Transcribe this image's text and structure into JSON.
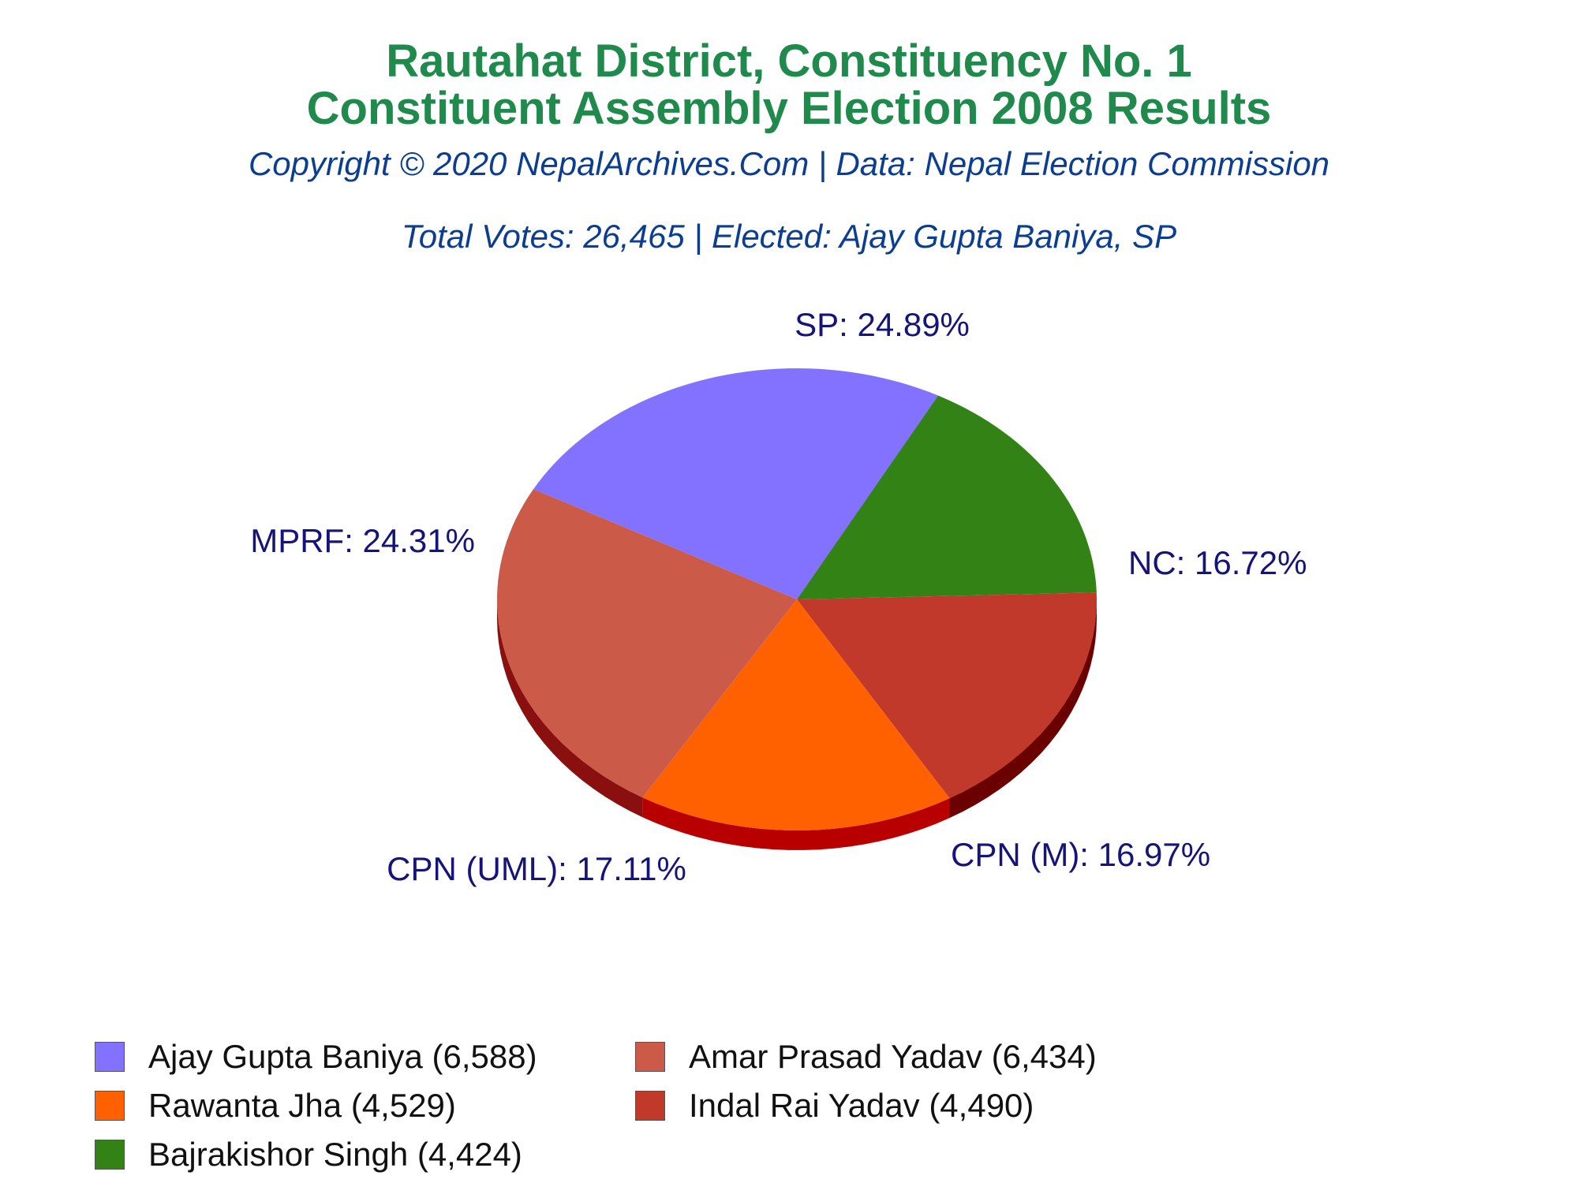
{
  "chart_data": {
    "type": "pie",
    "title": "Rautahat District, Constituency No. 1",
    "title_line2": "Constituent Assembly Election 2008 Results",
    "subtitle": "Copyright © 2020 NepalArchives.Com | Data: Nepal Election Commission",
    "summary": "Total Votes: 26,465 | Elected: Ajay Gupta Baniya, SP",
    "slices": [
      {
        "party": "SP",
        "percent": 24.89,
        "label": "SP: 24.89%",
        "color": "#8272ff",
        "side": "#4a3fa0"
      },
      {
        "party": "NC",
        "percent": 16.72,
        "label": "NC: 16.72%",
        "color": "#338216",
        "side": "#173d09"
      },
      {
        "party": "CPN (M)",
        "percent": 16.97,
        "label": "CPN (M): 16.97%",
        "color": "#c0392b",
        "side": "#6b0000"
      },
      {
        "party": "CPN (UML)",
        "percent": 17.11,
        "label": "CPN (UML): 17.11%",
        "color": "#ff6000",
        "side": "#b80000"
      },
      {
        "party": "MPRF",
        "percent": 24.31,
        "label": "MPRF: 24.31%",
        "color": "#cc5a48",
        "side": "#8a1010"
      }
    ],
    "legend": {
      "position": "bottom",
      "items": [
        {
          "label": "Ajay Gupta Baniya (6,588)",
          "color": "#8272ff"
        },
        {
          "label": "Amar Prasad Yadav (6,434)",
          "color": "#cc5a48"
        },
        {
          "label": "Rawanta Jha (4,529)",
          "color": "#ff6000"
        },
        {
          "label": "Indal Rai Yadav (4,490)",
          "color": "#c0392b"
        },
        {
          "label": "Bajrakishor Singh (4,424)",
          "color": "#338216"
        }
      ]
    }
  }
}
